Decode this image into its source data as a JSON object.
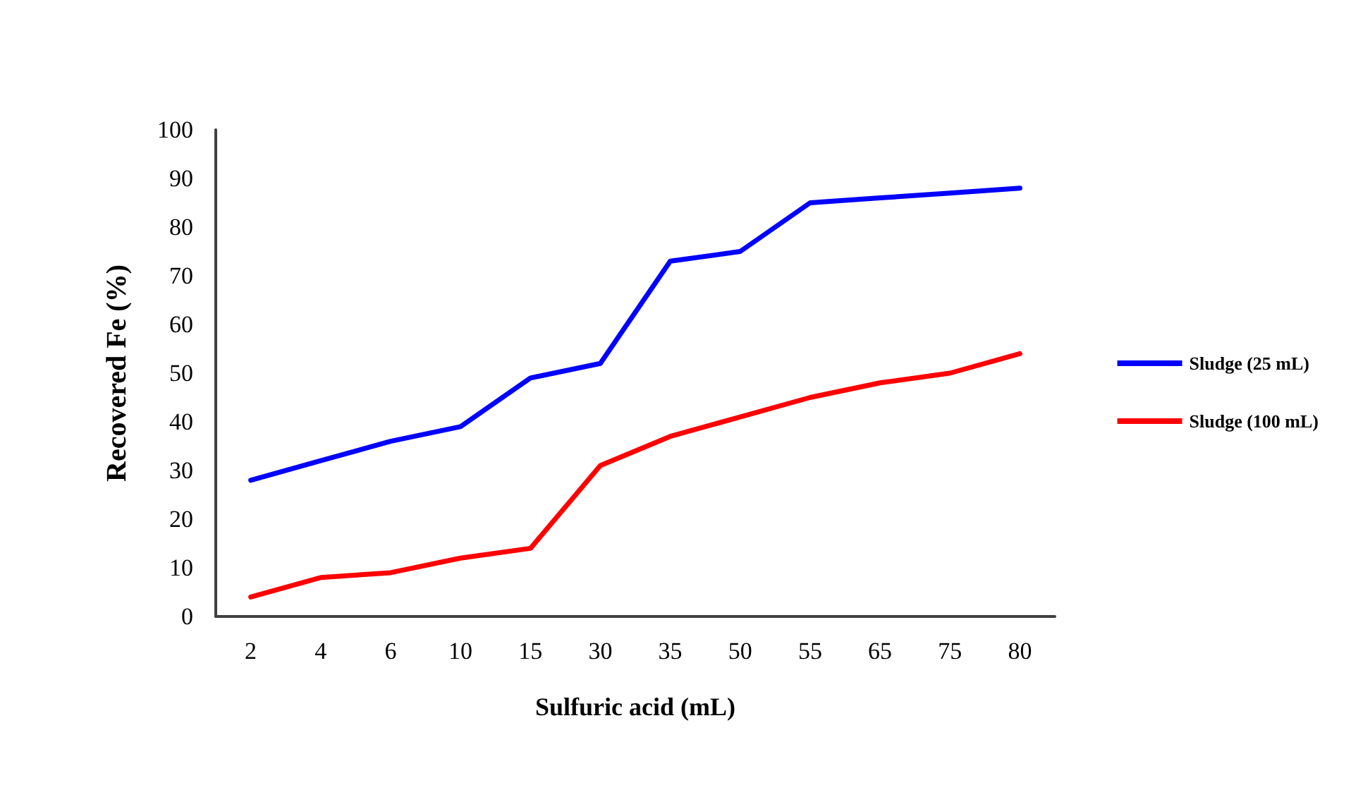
{
  "chart_data": {
    "type": "line",
    "xlabel": "Sulfuric acid (mL)",
    "ylabel": "Recovered Fe (%)",
    "categories": [
      "2",
      "4",
      "6",
      "10",
      "15",
      "30",
      "35",
      "50",
      "55",
      "65",
      "75",
      "80"
    ],
    "series": [
      {
        "name": "Sludge (25 mL)",
        "color": "#0000ff",
        "values": [
          28,
          32,
          36,
          39,
          49,
          52,
          73,
          75,
          85,
          86,
          87,
          88
        ]
      },
      {
        "name": "Sludge (100 mL)",
        "color": "#ff0000",
        "values": [
          4,
          8,
          9,
          12,
          14,
          31,
          37,
          41,
          45,
          48,
          50,
          54
        ]
      }
    ],
    "ylim": [
      0,
      100
    ],
    "yticks": [
      0,
      10,
      20,
      30,
      40,
      50,
      60,
      70,
      80,
      90,
      100
    ],
    "grid": false,
    "legend": "right",
    "marker": "none",
    "line_style": "solid"
  }
}
